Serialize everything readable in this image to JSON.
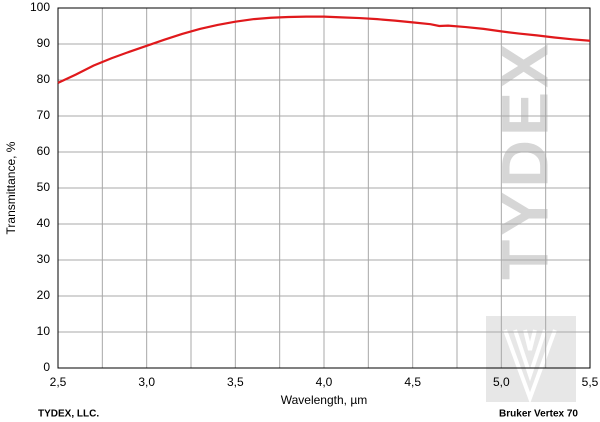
{
  "chart_data": {
    "type": "line",
    "xlabel": "Wavelength, µm",
    "ylabel": "Transmittance, %",
    "footer_left": "TYDEX, LLC.",
    "footer_right": "Bruker Vertex 70",
    "watermark": "TYDEX",
    "x": [
      2.5,
      2.6,
      2.7,
      2.8,
      2.9,
      3.0,
      3.1,
      3.2,
      3.3,
      3.4,
      3.5,
      3.6,
      3.7,
      3.8,
      3.9,
      4.0,
      4.1,
      4.2,
      4.3,
      4.4,
      4.5,
      4.6,
      4.65,
      4.7,
      4.8,
      4.9,
      5.0,
      5.1,
      5.2,
      5.3,
      5.4,
      5.5
    ],
    "series": [
      {
        "color": "#e0191c",
        "values": [
          79.2,
          81.5,
          84,
          86,
          87.8,
          89.5,
          91.2,
          92.8,
          94.2,
          95.3,
          96.2,
          96.9,
          97.3,
          97.5,
          97.6,
          97.6,
          97.4,
          97.2,
          96.9,
          96.5,
          96.0,
          95.5,
          95.0,
          95.1,
          94.7,
          94.2,
          93.5,
          92.9,
          92.4,
          91.8,
          91.3,
          90.9
        ]
      }
    ],
    "xlim": [
      2.5,
      5.5
    ],
    "xticks": [
      {
        "value": 2.5,
        "label": "2,5"
      },
      {
        "value": 3.0,
        "label": "3,0"
      },
      {
        "value": 3.5,
        "label": "3,5"
      },
      {
        "value": 4.0,
        "label": "4,0"
      },
      {
        "value": 4.5,
        "label": "4,5"
      },
      {
        "value": 5.0,
        "label": "5,0"
      },
      {
        "value": 5.5,
        "label": "5,5"
      }
    ],
    "xminor": [
      2.75,
      3.25,
      3.75,
      4.25,
      4.75,
      5.25
    ],
    "ylim": [
      0,
      100
    ],
    "yticks": [
      0,
      10,
      20,
      30,
      40,
      50,
      60,
      70,
      80,
      90,
      100
    ],
    "grid": true
  }
}
